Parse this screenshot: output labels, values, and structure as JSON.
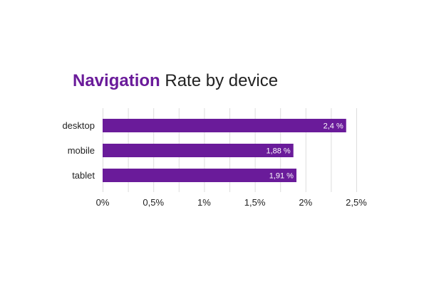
{
  "title": {
    "highlight": "Navigation",
    "rest": " Rate by device"
  },
  "colors": {
    "bar": "#6a1b9a",
    "grid": "#dddddd",
    "title_highlight": "#6a1b9a",
    "text": "#222222",
    "data_label": "#ffffff"
  },
  "chart_data": {
    "type": "bar",
    "orientation": "horizontal",
    "categories": [
      "desktop",
      "mobile",
      "tablet"
    ],
    "values": [
      2.4,
      1.88,
      1.91
    ],
    "value_labels": [
      "2,4 %",
      "1,88 %",
      "1,91 %"
    ],
    "xlim": [
      0,
      2.5
    ],
    "x_ticks": [
      0,
      0.25,
      0.5,
      0.75,
      1,
      1.25,
      1.5,
      1.75,
      2,
      2.25,
      2.5
    ],
    "x_tick_labels": [
      {
        "value": 0,
        "label": "0%"
      },
      {
        "value": 0.5,
        "label": "0,5%"
      },
      {
        "value": 1,
        "label": "1%"
      },
      {
        "value": 1.5,
        "label": "1,5%"
      },
      {
        "value": 2,
        "label": "2%"
      },
      {
        "value": 2.5,
        "label": "2,5%"
      }
    ],
    "grid": true,
    "legend": false
  }
}
